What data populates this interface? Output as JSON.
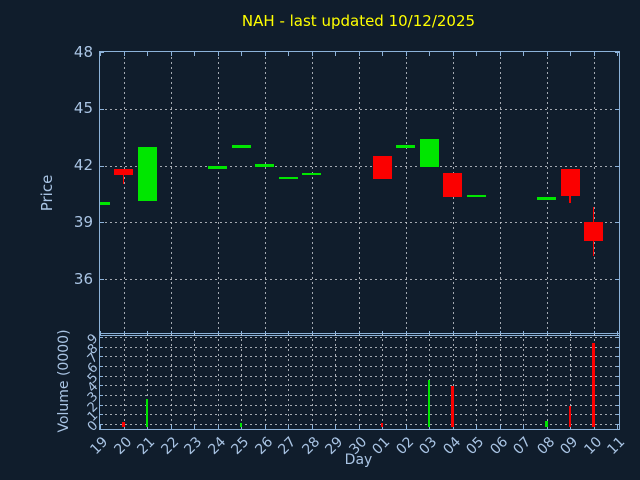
{
  "window": {
    "background": "#101d2c"
  },
  "title": {
    "text": "NAH - last updated 10/12/2025",
    "color": "#ffff00"
  },
  "colors": {
    "up": "#00e600",
    "down": "#fb0000",
    "spine": "#8cb2d9",
    "grid": "#c9cdd3",
    "tick_label": "#a9c4e4",
    "title": "#ffff00",
    "background": "#101d2c"
  },
  "chart_data": {
    "type": "candlestick+volume",
    "title": "NAH - last updated 10/12/2025",
    "xlabel": "Day",
    "price_ylabel": "Price",
    "volume_ylabel": "Volume (0000)",
    "price_ylim": [
      33.15,
      48
    ],
    "price_yticks": [
      48,
      45,
      42,
      39,
      36
    ],
    "volume_ylim": [
      -0.3,
      9.3
    ],
    "volume_yticks": [
      0,
      1,
      2,
      3,
      4,
      5,
      6,
      7,
      8,
      9
    ],
    "grid": "dashed, price panel: horizontal at yticks + vertical every other day; volume panel: every day + every integer",
    "days": [
      "19",
      "20",
      "21",
      "22",
      "23",
      "24",
      "25",
      "26",
      "27",
      "28",
      "29",
      "30",
      "01",
      "02",
      "03",
      "04",
      "05",
      "06",
      "07",
      "08",
      "09",
      "10",
      "11"
    ],
    "candles": [
      {
        "day": "19",
        "open": 40.0,
        "high": 40.0,
        "low": 40.0,
        "close": 40.0,
        "direction": "up"
      },
      {
        "day": "20",
        "open": 41.8,
        "high": 41.8,
        "low": 41.0,
        "close": 41.5,
        "direction": "down"
      },
      {
        "day": "21",
        "open": 40.1,
        "high": 43.0,
        "low": 40.1,
        "close": 43.0,
        "direction": "up"
      },
      {
        "day": "24",
        "open": 41.9,
        "high": 41.9,
        "low": 41.9,
        "close": 41.9,
        "direction": "up"
      },
      {
        "day": "25",
        "open": 43.0,
        "high": 43.0,
        "low": 43.0,
        "close": 43.0,
        "direction": "up"
      },
      {
        "day": "26",
        "open": 42.0,
        "high": 42.0,
        "low": 42.0,
        "close": 42.0,
        "direction": "up"
      },
      {
        "day": "27",
        "open": 41.35,
        "high": 41.35,
        "low": 41.35,
        "close": 41.35,
        "direction": "up"
      },
      {
        "day": "28",
        "open": 41.55,
        "high": 41.55,
        "low": 41.55,
        "close": 41.55,
        "direction": "up"
      },
      {
        "day": "01",
        "open": 42.5,
        "high": 42.5,
        "low": 41.3,
        "close": 41.3,
        "direction": "down"
      },
      {
        "day": "02",
        "open": 43.0,
        "high": 43.0,
        "low": 43.0,
        "close": 43.0,
        "direction": "up"
      },
      {
        "day": "03",
        "open": 41.9,
        "high": 43.4,
        "low": 41.9,
        "close": 43.4,
        "direction": "up"
      },
      {
        "day": "04",
        "open": 41.6,
        "high": 41.6,
        "low": 40.35,
        "close": 40.35,
        "direction": "down"
      },
      {
        "day": "05",
        "open": 40.4,
        "high": 40.4,
        "low": 40.4,
        "close": 40.4,
        "direction": "up"
      },
      {
        "day": "08",
        "open": 40.25,
        "high": 40.25,
        "low": 40.25,
        "close": 40.25,
        "direction": "up"
      },
      {
        "day": "09",
        "open": 41.8,
        "high": 41.8,
        "low": 40.0,
        "close": 40.4,
        "direction": "down"
      },
      {
        "day": "10",
        "open": 39.0,
        "high": 39.8,
        "low": 37.2,
        "close": 38.0,
        "direction": "down"
      }
    ],
    "volumes": [
      {
        "day": "20",
        "value": 0.25,
        "direction": "down"
      },
      {
        "day": "21",
        "value": 2.6,
        "direction": "up"
      },
      {
        "day": "25",
        "value": 0.15,
        "direction": "up"
      },
      {
        "day": "01",
        "value": 0.15,
        "direction": "down"
      },
      {
        "day": "03",
        "value": 4.6,
        "direction": "up"
      },
      {
        "day": "04",
        "value": 3.9,
        "direction": "down"
      },
      {
        "day": "08",
        "value": 0.3,
        "direction": "up"
      },
      {
        "day": "09",
        "value": 1.9,
        "direction": "down"
      },
      {
        "day": "10",
        "value": 8.4,
        "direction": "down"
      }
    ]
  }
}
